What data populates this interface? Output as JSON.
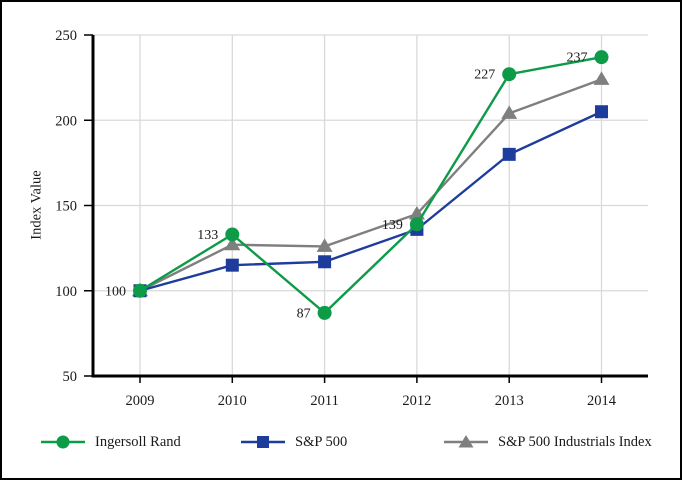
{
  "chart_data": {
    "type": "line",
    "title": "",
    "xlabel": "",
    "ylabel": "Index Value",
    "x": [
      2009,
      2010,
      2011,
      2012,
      2013,
      2014
    ],
    "yticks": [
      50,
      100,
      150,
      200,
      250
    ],
    "ylim": [
      50,
      250
    ],
    "grid": true,
    "legend_position": "bottom",
    "series": [
      {
        "name": "Ingersoll Rand",
        "marker": "circle",
        "color": "#0d9b48",
        "values": [
          100,
          133,
          87,
          139,
          227,
          237
        ]
      },
      {
        "name": "S&P 500",
        "marker": "square",
        "color": "#1e3c9b",
        "values": [
          100,
          115,
          117,
          136,
          180,
          205
        ]
      },
      {
        "name": "S&P 500 Industrials Index",
        "marker": "triangle",
        "color": "#7f7f7f",
        "values": [
          100,
          127,
          126,
          145,
          204,
          224
        ]
      }
    ],
    "point_labels": {
      "series_index": 0,
      "labels": [
        "100",
        "133",
        "87",
        "139",
        "227",
        "237"
      ]
    }
  },
  "colors": {
    "frame_border": "#000000",
    "axis": "#000000",
    "gridline": "#d9d9d9",
    "text": "#1a1a1a",
    "background": "#ffffff"
  }
}
